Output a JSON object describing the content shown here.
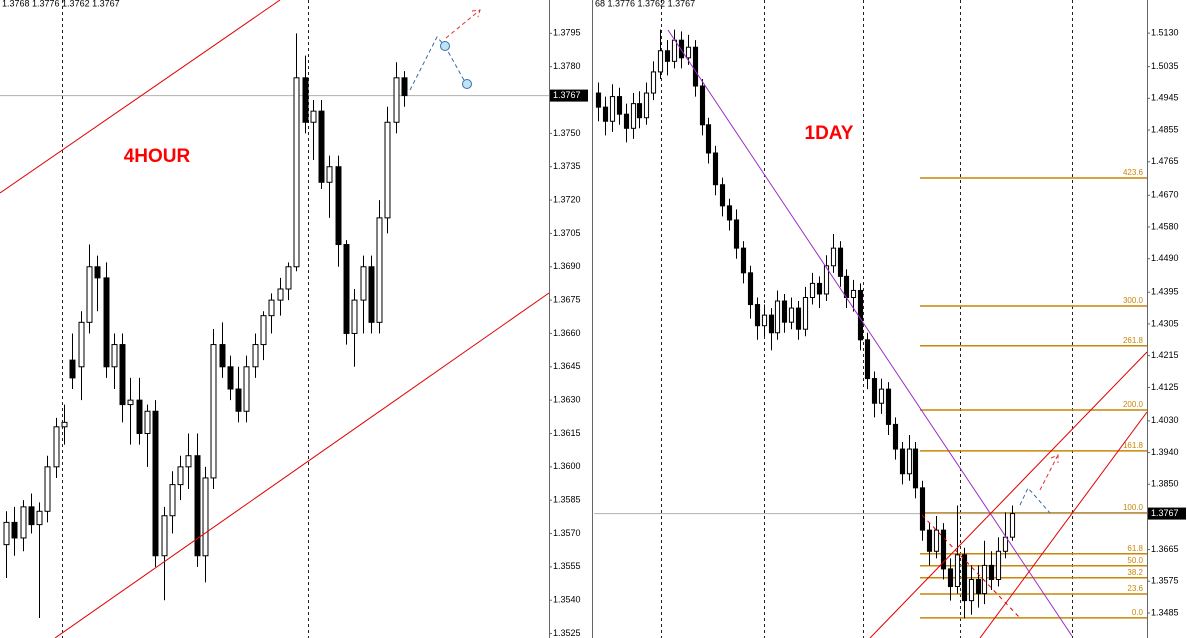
{
  "chart_data": [
    {
      "type": "candlestick",
      "header": "1.3768 1.3776 1.3762 1.3767",
      "label": "4HOUR",
      "label_color": "#ff0000",
      "colors": {
        "up": "#ffffff",
        "down": "#000000",
        "wick": "#000000"
      },
      "ylim": [
        1.3523,
        1.381
      ],
      "yticks": [
        1.3795,
        {
          "value": 1.378,
          "label": "1.3780"
        },
        {
          "value": 1.375,
          "label": "1.3750"
        },
        1.3735,
        {
          "value": 1.372,
          "label": "1.3720"
        },
        1.3705,
        {
          "value": 1.369,
          "label": "1.3690"
        },
        1.3675,
        {
          "value": 1.366,
          "label": "1.3660"
        },
        1.3645,
        {
          "value": 1.363,
          "label": "1.3630"
        },
        1.3615,
        {
          "value": 1.36,
          "label": "1.3600"
        },
        1.3585,
        {
          "value": 1.357,
          "label": "1.3570"
        },
        1.3555,
        {
          "value": 1.354,
          "label": "1.3540"
        },
        1.3525
      ],
      "last_price": 1.3767,
      "open": [
        1.3565,
        1.3575,
        1.3568,
        1.3582,
        1.3574,
        1.358,
        1.36,
        1.3618,
        1.3648,
        1.3645,
        1.3665,
        1.369,
        1.3685,
        1.3645,
        1.3655,
        1.3628,
        1.363,
        1.3615,
        1.3625,
        1.356,
        1.3578,
        1.3592,
        1.36,
        1.3605,
        1.356,
        1.3595,
        1.3655,
        1.3645,
        1.3635,
        1.3625,
        1.3645,
        1.3655,
        1.3668,
        1.3675,
        1.368,
        1.369,
        1.3775,
        1.3755,
        1.376,
        1.3728,
        1.3735,
        1.37,
        1.366,
        1.3675,
        1.369,
        1.3665,
        1.3712,
        1.3755,
        1.3775
      ],
      "high": [
        1.358,
        1.3582,
        1.3585,
        1.3588,
        1.3584,
        1.3605,
        1.3622,
        1.3628,
        1.366,
        1.367,
        1.37,
        1.3695,
        1.3692,
        1.366,
        1.366,
        1.364,
        1.364,
        1.3628,
        1.363,
        1.3582,
        1.3598,
        1.3605,
        1.3615,
        1.3615,
        1.36,
        1.3662,
        1.3665,
        1.365,
        1.3645,
        1.365,
        1.366,
        1.367,
        1.3678,
        1.3685,
        1.3692,
        1.3795,
        1.3785,
        1.3765,
        1.3765,
        1.374,
        1.374,
        1.3702,
        1.368,
        1.3695,
        1.3695,
        1.372,
        1.3762,
        1.3782,
        1.3778
      ],
      "low": [
        1.355,
        1.356,
        1.3562,
        1.357,
        1.3532,
        1.3575,
        1.3595,
        1.361,
        1.3635,
        1.363,
        1.366,
        1.367,
        1.364,
        1.3635,
        1.362,
        1.361,
        1.361,
        1.36,
        1.3555,
        1.354,
        1.357,
        1.3585,
        1.359,
        1.3555,
        1.3548,
        1.359,
        1.364,
        1.363,
        1.362,
        1.362,
        1.364,
        1.3648,
        1.366,
        1.3668,
        1.3675,
        1.3688,
        1.375,
        1.3738,
        1.3725,
        1.3712,
        1.369,
        1.3655,
        1.3645,
        1.366,
        1.366,
        1.366,
        1.3705,
        1.375,
        1.3762
      ],
      "close": [
        1.3575,
        1.3568,
        1.3582,
        1.3574,
        1.358,
        1.36,
        1.3618,
        1.362,
        1.364,
        1.3665,
        1.369,
        1.3685,
        1.3645,
        1.3655,
        1.3628,
        1.363,
        1.3615,
        1.3625,
        1.356,
        1.3578,
        1.3592,
        1.36,
        1.3605,
        1.356,
        1.3595,
        1.3655,
        1.3645,
        1.3635,
        1.3625,
        1.3645,
        1.3655,
        1.3668,
        1.3675,
        1.368,
        1.369,
        1.3775,
        1.3755,
        1.376,
        1.3728,
        1.3735,
        1.37,
        1.366,
        1.3675,
        1.369,
        1.3665,
        1.3712,
        1.3755,
        1.3775,
        1.3767
      ]
    },
    {
      "type": "candlestick",
      "header": "68 1.3776 1.3762 1.3767",
      "label": "1DAY",
      "label_color": "#ff0000",
      "colors": {
        "up": "#ffffff",
        "down": "#000000",
        "wick": "#000000"
      },
      "fib_color": "#c8860a",
      "ylim": [
        1.3414,
        1.5224
      ],
      "yticks": [
        {
          "value": 1.513,
          "label": "1.5130"
        },
        1.5035,
        1.4945,
        1.4855,
        1.4765,
        {
          "value": 1.467,
          "label": "1.4670"
        },
        {
          "value": 1.458,
          "label": "1.4580"
        },
        {
          "value": 1.449,
          "label": "1.4490"
        },
        1.4395,
        1.4305,
        1.4215,
        1.4125,
        {
          "value": 1.403,
          "label": "1.4030"
        },
        {
          "value": 1.394,
          "label": "1.3940"
        },
        {
          "value": 1.385,
          "label": "1.3850"
        },
        1.3665,
        1.3575,
        1.3485
      ],
      "last_price": 1.3767,
      "fib_levels": [
        {
          "label": "423.6",
          "price": 1.4719
        },
        {
          "label": "300.0",
          "price": 1.4356
        },
        {
          "label": "261.8",
          "price": 1.4243
        },
        {
          "label": "200.0",
          "price": 1.4061
        },
        {
          "label": "161.8",
          "price": 1.3945
        },
        {
          "label": "100.0",
          "price": 1.3769
        },
        {
          "label": "61.8",
          "price": 1.3653
        },
        {
          "label": "50.0",
          "price": 1.3619
        },
        {
          "label": "38.2",
          "price": 1.3585
        },
        {
          "label": "23.6",
          "price": 1.3539
        },
        {
          "label": "0.0",
          "price": 1.3471
        }
      ],
      "open": [
        1.496,
        1.492,
        1.488,
        1.495,
        1.49,
        1.486,
        1.493,
        1.489,
        1.496,
        1.502,
        1.508,
        1.505,
        1.511,
        1.506,
        1.509,
        1.498,
        1.487,
        1.479,
        1.47,
        1.464,
        1.46,
        1.452,
        1.445,
        1.436,
        1.43,
        1.433,
        1.428,
        1.437,
        1.431,
        1.435,
        1.429,
        1.438,
        1.442,
        1.439,
        1.447,
        1.452,
        1.444,
        1.438,
        1.44,
        1.426,
        1.415,
        1.408,
        1.412,
        1.402,
        1.395,
        1.388,
        1.395,
        1.384,
        1.372,
        1.366,
        1.372,
        1.361,
        1.356,
        1.365,
        1.352,
        1.358,
        1.354,
        1.362,
        1.358,
        1.366,
        1.37
      ],
      "high": [
        1.499,
        1.495,
        1.4985,
        1.4975,
        1.493,
        1.496,
        1.4965,
        1.499,
        1.505,
        1.514,
        1.511,
        1.514,
        1.5135,
        1.5125,
        1.511,
        1.5,
        1.489,
        1.481,
        1.472,
        1.466,
        1.463,
        1.454,
        1.447,
        1.438,
        1.436,
        1.435,
        1.44,
        1.439,
        1.438,
        1.437,
        1.441,
        1.445,
        1.444,
        1.45,
        1.456,
        1.454,
        1.446,
        1.443,
        1.442,
        1.428,
        1.417,
        1.415,
        1.414,
        1.404,
        1.397,
        1.399,
        1.397,
        1.386,
        1.374,
        1.376,
        1.374,
        1.364,
        1.379,
        1.367,
        1.362,
        1.362,
        1.369,
        1.366,
        1.37,
        1.377,
        1.379
      ],
      "low": [
        1.488,
        1.484,
        1.485,
        1.487,
        1.482,
        1.483,
        1.486,
        1.487,
        1.494,
        1.5,
        1.501,
        1.503,
        1.503,
        1.504,
        1.495,
        1.484,
        1.476,
        1.467,
        1.461,
        1.457,
        1.449,
        1.442,
        1.432,
        1.426,
        1.427,
        1.423,
        1.426,
        1.428,
        1.429,
        1.426,
        1.427,
        1.436,
        1.435,
        1.437,
        1.445,
        1.441,
        1.435,
        1.434,
        1.423,
        1.412,
        1.404,
        1.405,
        1.399,
        1.392,
        1.385,
        1.386,
        1.381,
        1.369,
        1.362,
        1.364,
        1.358,
        1.352,
        1.354,
        1.347,
        1.348,
        1.35,
        1.351,
        1.355,
        1.356,
        1.364,
        1.369
      ],
      "close": [
        1.492,
        1.488,
        1.495,
        1.49,
        1.486,
        1.493,
        1.489,
        1.496,
        1.502,
        1.508,
        1.505,
        1.511,
        1.506,
        1.509,
        1.498,
        1.487,
        1.479,
        1.47,
        1.464,
        1.46,
        1.452,
        1.445,
        1.436,
        1.43,
        1.433,
        1.428,
        1.437,
        1.431,
        1.435,
        1.429,
        1.438,
        1.442,
        1.439,
        1.447,
        1.452,
        1.444,
        1.438,
        1.44,
        1.426,
        1.415,
        1.408,
        1.412,
        1.402,
        1.395,
        1.388,
        1.395,
        1.384,
        1.372,
        1.366,
        1.372,
        1.361,
        1.356,
        1.365,
        1.352,
        1.358,
        1.354,
        1.362,
        1.358,
        1.366,
        1.37,
        1.3767
      ]
    }
  ]
}
